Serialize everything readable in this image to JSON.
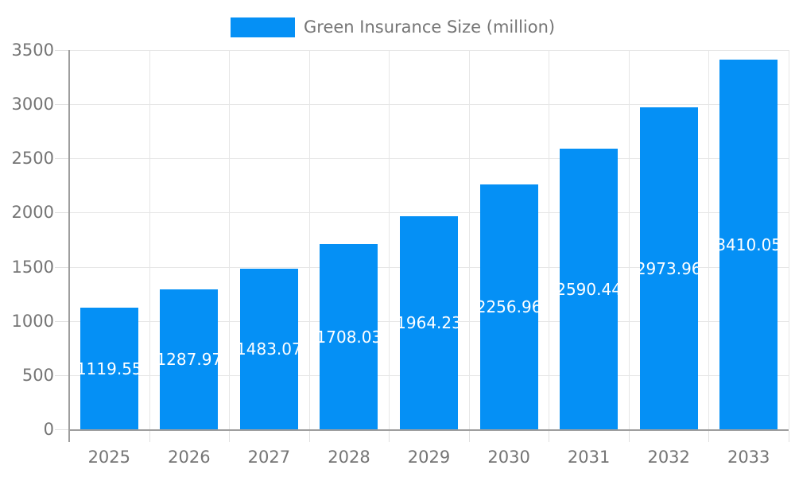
{
  "chart_data": {
    "type": "bar",
    "title": "",
    "legend_label": "Green Insurance Size (million)",
    "legend_position": "top",
    "categories": [
      "2025",
      "2026",
      "2027",
      "2028",
      "2029",
      "2030",
      "2031",
      "2032",
      "2033"
    ],
    "series": [
      {
        "name": "Green Insurance Size (million)",
        "values": [
          1119.55,
          1287.97,
          1483.07,
          1708.03,
          1964.23,
          2256.96,
          2590.44,
          2973.96,
          3410.05
        ]
      }
    ],
    "bar_value_labels": [
      "1119.55",
      "1287.97",
      "1483.07",
      "1708.03",
      "1964.23",
      "2256.96",
      "2590.44",
      "2973.96",
      "3410.05"
    ],
    "xlabel": "",
    "ylabel": "",
    "ylim": [
      0,
      3500
    ],
    "yticks": [
      0,
      500,
      1000,
      1500,
      2000,
      2500,
      3000,
      3500
    ],
    "ytick_labels": [
      "0",
      "500",
      "1000",
      "1500",
      "2000",
      "2500",
      "3000",
      "3500"
    ],
    "grid": true,
    "colors": {
      "bar": "#0590f5",
      "axis_line": "#9e9e9e",
      "gridline": "#e6e6e6",
      "tick": "#e0e0e0",
      "axis_label": "#757575",
      "legend_text": "#757575",
      "bar_label": "#ffffff",
      "background": "#ffffff"
    }
  }
}
